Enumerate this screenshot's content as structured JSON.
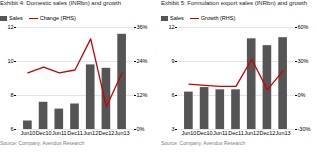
{
  "chart_data": [
    {
      "type": "bar",
      "title": "Exhibit 4: Domestic sales (INRbn) and growth",
      "annotations": [
        "Source: Company, Avendus Research"
      ],
      "categories": [
        "Jun10",
        "Dec10",
        "Jun11",
        "Dec11",
        "Jun12",
        "Dec12",
        "Jun13"
      ],
      "series": [
        {
          "name": "Sales",
          "type": "bar",
          "color": "#555555",
          "values": [
            6.5,
            7.6,
            7.2,
            7.5,
            9.8,
            9.6,
            11.6
          ]
        },
        {
          "name": "Change (RHS)",
          "type": "line",
          "color": "#cc0000",
          "axis": "y2",
          "values": [
            20,
            22,
            20,
            21,
            32,
            8,
            20
          ]
        }
      ],
      "ylim": [
        6,
        12
      ],
      "yticks": [
        6,
        8,
        10,
        12
      ],
      "y2lim": [
        0,
        36
      ],
      "y2ticks": [
        {
          "value": 0,
          "label": "0%"
        },
        {
          "value": 12,
          "label": "12%"
        },
        {
          "value": 24,
          "label": "24%"
        },
        {
          "value": 36,
          "label": "36%"
        }
      ],
      "grid": true,
      "legend": "upper left"
    },
    {
      "type": "bar",
      "title": "Exhibit 5: Formulation export sales (INRbn) and growth",
      "annotations": [
        "Source: Company, Avendus Research"
      ],
      "categories": [
        "Jun10",
        "Dec10",
        "Jun11",
        "Dec11",
        "Jun12",
        "Dec12",
        "Jun13"
      ],
      "series": [
        {
          "name": "Sales",
          "type": "bar",
          "color": "#555555",
          "values": [
            6.3,
            6.7,
            6.5,
            6.5,
            11.0,
            10.4,
            11.1
          ]
        },
        {
          "name": "Growth (RHS)",
          "type": "line",
          "color": "#cc0000",
          "axis": "y2",
          "values": [
            10,
            9,
            8,
            8,
            32,
            5,
            22
          ]
        }
      ],
      "ylim": [
        3,
        12
      ],
      "yticks": [
        3,
        6,
        9,
        12
      ],
      "y2lim": [
        -30,
        60
      ],
      "y2ticks": [
        {
          "value": -30,
          "label": "-30%"
        },
        {
          "value": 0,
          "label": "0%"
        },
        {
          "value": 30,
          "label": "30%"
        },
        {
          "value": 60,
          "label": "60%"
        }
      ],
      "grid": true,
      "legend": "upper left"
    }
  ]
}
